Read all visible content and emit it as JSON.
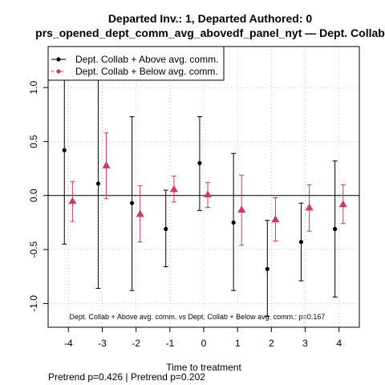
{
  "chart_data": {
    "type": "scatter",
    "title": "Departed Inv.: 1, Departed Authored: 0",
    "subtitle": "prs_opened_dept_comm_avg_abovedf_panel_nyt — Dept. Collab",
    "xlabel": "Time to treatment",
    "ylabel": "",
    "x_ticks": [
      -4,
      -3,
      -2,
      -1,
      0,
      1,
      2,
      3,
      4
    ],
    "y_ticks": [
      -1.0,
      -0.5,
      0.0,
      0.5,
      1.0
    ],
    "y_tick_labels": [
      "-1.0",
      "-0.5",
      "0.0",
      "0.5",
      "1.0"
    ],
    "xlim": [
      -4.6,
      4.6
    ],
    "ylim": [
      -1.22,
      1.38
    ],
    "grid": true,
    "legend_position": "top-left",
    "series": [
      {
        "name": "Dept. Collab + Above avg. comm.",
        "color": "#000000",
        "marker": "circle",
        "points": [
          {
            "x": -4,
            "y": 0.42,
            "lo": -0.45,
            "hi": 1.25
          },
          {
            "x": -3,
            "y": 0.11,
            "lo": -0.86,
            "hi": 1.25
          },
          {
            "x": -2,
            "y": -0.07,
            "lo": -0.88,
            "hi": 0.73
          },
          {
            "x": -1,
            "y": -0.31,
            "lo": -0.66,
            "hi": 0.05
          },
          {
            "x": 0,
            "y": 0.3,
            "lo": -0.14,
            "hi": 0.73
          },
          {
            "x": 1,
            "y": -0.25,
            "lo": -0.88,
            "hi": 0.39
          },
          {
            "x": 2,
            "y": -0.68,
            "lo": -1.12,
            "hi": -0.23
          },
          {
            "x": 3,
            "y": -0.43,
            "lo": -0.79,
            "hi": -0.07
          },
          {
            "x": 4,
            "y": -0.31,
            "lo": -0.94,
            "hi": 0.32
          }
        ]
      },
      {
        "name": "Dept. Collab + Below avg. comm.",
        "color": "#d0385c",
        "marker": "triangle",
        "points": [
          {
            "x": -4,
            "y": -0.05,
            "lo": -0.24,
            "hi": 0.13
          },
          {
            "x": -3,
            "y": 0.28,
            "lo": -0.03,
            "hi": 0.58
          },
          {
            "x": -2,
            "y": -0.17,
            "lo": -0.43,
            "hi": 0.09
          },
          {
            "x": -1,
            "y": 0.06,
            "lo": -0.06,
            "hi": 0.18
          },
          {
            "x": 0,
            "y": 0.01,
            "lo": -0.11,
            "hi": 0.12
          },
          {
            "x": 1,
            "y": -0.13,
            "lo": -0.46,
            "hi": 0.19
          },
          {
            "x": 2,
            "y": -0.22,
            "lo": -0.42,
            "hi": -0.02
          },
          {
            "x": 3,
            "y": -0.11,
            "lo": -0.33,
            "hi": 0.1
          },
          {
            "x": 4,
            "y": -0.08,
            "lo": -0.26,
            "hi": 0.1
          }
        ]
      }
    ],
    "annotation": "Dept. Collab + Above avg. comm. vs Dept. Collab + Below avg. comm.: p=0.167",
    "footnote": "Pretrend p=0.426 | Pretrend p=0.202"
  }
}
